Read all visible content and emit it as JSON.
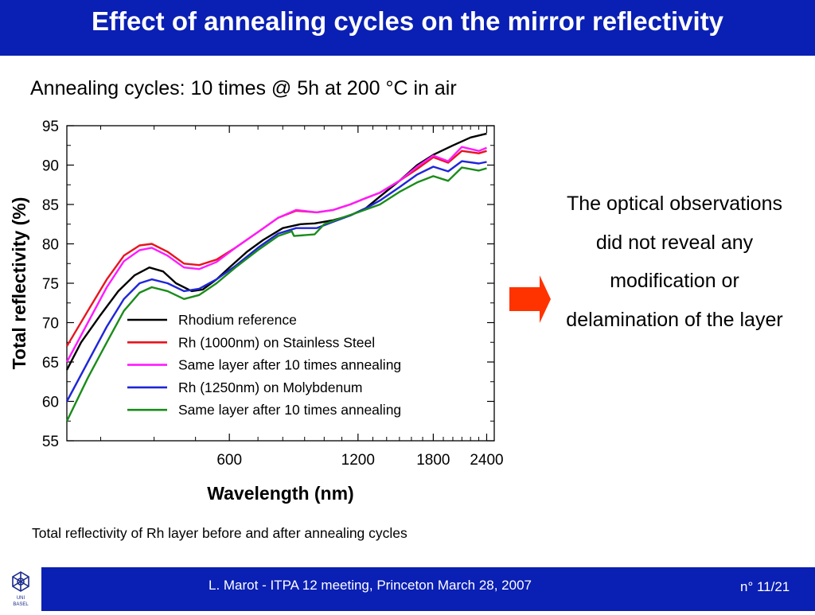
{
  "slide": {
    "title": "Effect of annealing cycles on the mirror reflectivity",
    "subtitle": "Annealing cycles: 10 times @ 5h at 200 °C in air",
    "observation": "The optical observations did not reveal any modification or delamination of the layer",
    "caption": "Total reflectivity of Rh layer before and after annealing cycles",
    "footer": "L. Marot - ITPA 12 meeting, Princeton March 28, 2007",
    "page": "n° 11/21",
    "logo_text": "UNI BASEL"
  },
  "colors": {
    "header_blue": "#0a1fb3",
    "arrow": "#ff3300"
  },
  "chart_data": {
    "type": "line",
    "xscale": "log",
    "xlabel": "Wavelength (nm)",
    "ylabel": "Total reflectivity (%)",
    "xlim": [
      250,
      2500
    ],
    "ylim": [
      55,
      95
    ],
    "xticks": [
      600,
      1200,
      1800,
      2400
    ],
    "yticks": [
      55,
      60,
      65,
      70,
      75,
      80,
      85,
      90,
      95
    ],
    "legend_position": "inside-bottom-right",
    "grid": false,
    "series": [
      {
        "name": "Rhodium reference",
        "color": "#000000",
        "points": [
          [
            250,
            64
          ],
          [
            270,
            67.5
          ],
          [
            300,
            71
          ],
          [
            330,
            74
          ],
          [
            360,
            76
          ],
          [
            390,
            77
          ],
          [
            420,
            76.5
          ],
          [
            450,
            75
          ],
          [
            490,
            74
          ],
          [
            520,
            74.2
          ],
          [
            560,
            75.5
          ],
          [
            600,
            77
          ],
          [
            660,
            79
          ],
          [
            720,
            80.5
          ],
          [
            800,
            82
          ],
          [
            880,
            82.5
          ],
          [
            950,
            82.6
          ],
          [
            1050,
            83
          ],
          [
            1150,
            83.6
          ],
          [
            1250,
            84.5
          ],
          [
            1350,
            86
          ],
          [
            1500,
            88
          ],
          [
            1650,
            90
          ],
          [
            1800,
            91.3
          ],
          [
            2000,
            92.5
          ],
          [
            2200,
            93.5
          ],
          [
            2400,
            94
          ]
        ]
      },
      {
        "name": "Rh (1000nm) on Stainless Steel",
        "color": "#e8141e",
        "points": [
          [
            250,
            67
          ],
          [
            280,
            71.5
          ],
          [
            310,
            75.5
          ],
          [
            340,
            78.5
          ],
          [
            370,
            79.8
          ],
          [
            395,
            80
          ],
          [
            430,
            79
          ],
          [
            470,
            77.5
          ],
          [
            510,
            77.3
          ],
          [
            560,
            78
          ],
          [
            620,
            79.5
          ],
          [
            700,
            81.5
          ],
          [
            780,
            83.3
          ],
          [
            860,
            84.2
          ],
          [
            960,
            84
          ],
          [
            1050,
            84.3
          ],
          [
            1150,
            85
          ],
          [
            1250,
            85.8
          ],
          [
            1350,
            86.5
          ],
          [
            1500,
            88
          ],
          [
            1650,
            89.5
          ],
          [
            1800,
            91
          ],
          [
            1950,
            90.3
          ],
          [
            2100,
            91.8
          ],
          [
            2300,
            91.5
          ],
          [
            2400,
            91.8
          ]
        ]
      },
      {
        "name": "Same layer after 10 times annealing",
        "color": "#ff1aff",
        "points": [
          [
            250,
            65
          ],
          [
            280,
            70
          ],
          [
            310,
            74.5
          ],
          [
            340,
            77.8
          ],
          [
            370,
            79.2
          ],
          [
            395,
            79.5
          ],
          [
            430,
            78.5
          ],
          [
            470,
            77
          ],
          [
            510,
            76.8
          ],
          [
            560,
            77.7
          ],
          [
            620,
            79.5
          ],
          [
            700,
            81.5
          ],
          [
            780,
            83.3
          ],
          [
            860,
            84.3
          ],
          [
            960,
            84
          ],
          [
            1050,
            84.3
          ],
          [
            1150,
            85
          ],
          [
            1250,
            85.8
          ],
          [
            1350,
            86.5
          ],
          [
            1500,
            88
          ],
          [
            1650,
            89.8
          ],
          [
            1800,
            91.2
          ],
          [
            1950,
            90.5
          ],
          [
            2100,
            92.3
          ],
          [
            2300,
            91.8
          ],
          [
            2400,
            92.2
          ]
        ]
      },
      {
        "name": "Rh (1250nm) on Molybdenum",
        "color": "#1e26d8",
        "points": [
          [
            250,
            60
          ],
          [
            280,
            65
          ],
          [
            310,
            69.5
          ],
          [
            340,
            73
          ],
          [
            370,
            75
          ],
          [
            395,
            75.5
          ],
          [
            430,
            75
          ],
          [
            470,
            74
          ],
          [
            510,
            74.3
          ],
          [
            560,
            75.5
          ],
          [
            620,
            77.2
          ],
          [
            700,
            79.5
          ],
          [
            780,
            81.3
          ],
          [
            860,
            82
          ],
          [
            960,
            82
          ],
          [
            1050,
            82.8
          ],
          [
            1150,
            83.6
          ],
          [
            1250,
            84.5
          ],
          [
            1350,
            85.5
          ],
          [
            1500,
            87.2
          ],
          [
            1650,
            88.8
          ],
          [
            1800,
            89.8
          ],
          [
            1950,
            89.2
          ],
          [
            2100,
            90.5
          ],
          [
            2300,
            90.2
          ],
          [
            2400,
            90.4
          ]
        ]
      },
      {
        "name": "Same layer after 10 times annealing",
        "color": "#1a8c1a",
        "points": [
          [
            250,
            57.5
          ],
          [
            280,
            63
          ],
          [
            310,
            67.5
          ],
          [
            340,
            71.5
          ],
          [
            370,
            73.8
          ],
          [
            395,
            74.5
          ],
          [
            430,
            74
          ],
          [
            470,
            73
          ],
          [
            510,
            73.5
          ],
          [
            560,
            75
          ],
          [
            620,
            77
          ],
          [
            700,
            79.2
          ],
          [
            780,
            81
          ],
          [
            840,
            81.6
          ],
          [
            850,
            81
          ],
          [
            950,
            81.2
          ],
          [
            1000,
            82.5
          ],
          [
            1100,
            83.3
          ],
          [
            1200,
            84
          ],
          [
            1350,
            85
          ],
          [
            1500,
            86.6
          ],
          [
            1650,
            87.8
          ],
          [
            1800,
            88.6
          ],
          [
            1950,
            88
          ],
          [
            2100,
            89.7
          ],
          [
            2300,
            89.3
          ],
          [
            2400,
            89.6
          ]
        ]
      }
    ]
  }
}
